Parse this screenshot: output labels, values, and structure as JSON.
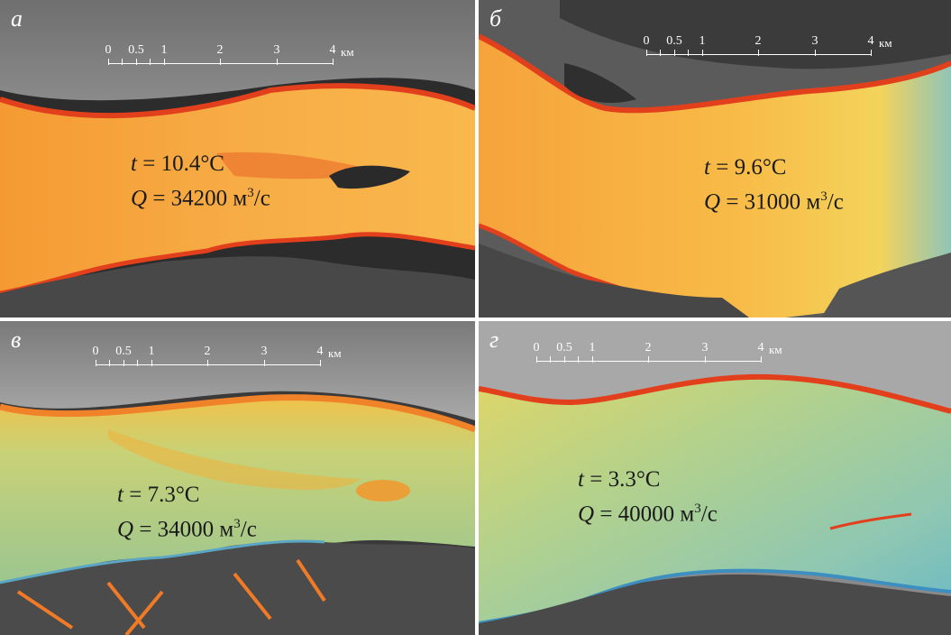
{
  "panels": [
    {
      "letter": "а",
      "temp_symbol": "t",
      "temp_eq": " = ",
      "temp_value": "10.4°C",
      "flow_symbol": "Q",
      "flow_eq": " = ",
      "flow_value": "34200 м",
      "flow_exp": "3",
      "flow_unit": "/с",
      "scale": {
        "ticks": [
          "0",
          "0.5",
          "1",
          "2",
          "3",
          "4"
        ],
        "unit": "км"
      }
    },
    {
      "letter": "б",
      "temp_symbol": "t",
      "temp_eq": " = ",
      "temp_value": "9.6°C",
      "flow_symbol": "Q",
      "flow_eq": " = ",
      "flow_value": "31000 м",
      "flow_exp": "3",
      "flow_unit": "/с",
      "scale": {
        "ticks": [
          "0",
          "0.5",
          "1",
          "2",
          "3",
          "4"
        ],
        "unit": "км"
      }
    },
    {
      "letter": "в",
      "temp_symbol": "t",
      "temp_eq": " = ",
      "temp_value": "7.3°C",
      "flow_symbol": "Q",
      "flow_eq": " = ",
      "flow_value": "34000 м",
      "flow_exp": "3",
      "flow_unit": "/с",
      "scale": {
        "ticks": [
          "0",
          "0.5",
          "1",
          "2",
          "3",
          "4"
        ],
        "unit": "км"
      }
    },
    {
      "letter": "г",
      "temp_symbol": "t",
      "temp_eq": " = ",
      "temp_value": "3.3°C",
      "flow_symbol": "Q",
      "flow_eq": " = ",
      "flow_value": "40000 м",
      "flow_exp": "3",
      "flow_unit": "/с",
      "scale": {
        "ticks": [
          "0",
          "0.5",
          "1",
          "2",
          "3",
          "4"
        ],
        "unit": "км"
      }
    }
  ],
  "colors": {
    "warm_water": "#f7a23a",
    "hot_edge": "#e2401c",
    "cool_water": "#a9c98a",
    "cold_water": "#5fb4c4",
    "land_dark": "#4a4a4a",
    "land_light": "#b8b8b8"
  }
}
